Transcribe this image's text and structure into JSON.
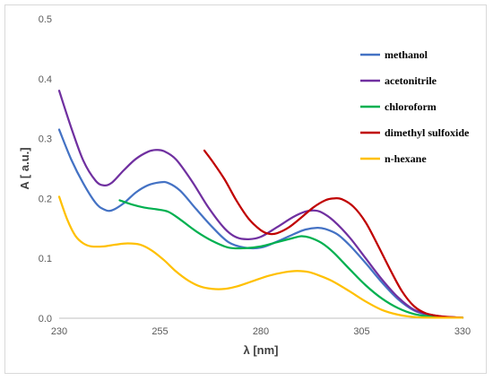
{
  "chart_data": {
    "type": "line",
    "xlabel": "λ [nm]",
    "ylabel": "A [ a.u.]",
    "xlim": [
      230,
      330
    ],
    "ylim": [
      0,
      0.5
    ],
    "x_ticks": [
      230,
      255,
      280,
      305,
      330
    ],
    "y_ticks": [
      0.0,
      0.1,
      0.2,
      0.3,
      0.4,
      0.5
    ],
    "y_tick_labels": [
      "0.0",
      "0.1",
      "0.2",
      "0.3",
      "0.4",
      "0.5"
    ],
    "grid": false,
    "legend_position": "right",
    "series": [
      {
        "name": "methanol",
        "color": "#4472C4",
        "points": [
          [
            230,
            0.315
          ],
          [
            233,
            0.265
          ],
          [
            236,
            0.225
          ],
          [
            239,
            0.193
          ],
          [
            241,
            0.182
          ],
          [
            243,
            0.18
          ],
          [
            246,
            0.192
          ],
          [
            249,
            0.21
          ],
          [
            252,
            0.222
          ],
          [
            255,
            0.227
          ],
          [
            257,
            0.226
          ],
          [
            260,
            0.213
          ],
          [
            264,
            0.182
          ],
          [
            268,
            0.152
          ],
          [
            272,
            0.127
          ],
          [
            276,
            0.118
          ],
          [
            280,
            0.118
          ],
          [
            284,
            0.128
          ],
          [
            288,
            0.14
          ],
          [
            291,
            0.148
          ],
          [
            294,
            0.151
          ],
          [
            296,
            0.149
          ],
          [
            299,
            0.14
          ],
          [
            302,
            0.122
          ],
          [
            306,
            0.092
          ],
          [
            310,
            0.06
          ],
          [
            314,
            0.032
          ],
          [
            318,
            0.013
          ],
          [
            322,
            0.005
          ],
          [
            326,
            0.002
          ],
          [
            330,
            0.001
          ]
        ]
      },
      {
        "name": "acetonitrile",
        "color": "#7030A0",
        "points": [
          [
            230,
            0.38
          ],
          [
            233,
            0.318
          ],
          [
            236,
            0.263
          ],
          [
            239,
            0.23
          ],
          [
            241,
            0.222
          ],
          [
            243,
            0.226
          ],
          [
            246,
            0.247
          ],
          [
            249,
            0.266
          ],
          [
            252,
            0.278
          ],
          [
            254,
            0.281
          ],
          [
            256,
            0.279
          ],
          [
            259,
            0.265
          ],
          [
            263,
            0.228
          ],
          [
            267,
            0.185
          ],
          [
            271,
            0.15
          ],
          [
            274,
            0.135
          ],
          [
            277,
            0.132
          ],
          [
            280,
            0.136
          ],
          [
            284,
            0.152
          ],
          [
            288,
            0.169
          ],
          [
            291,
            0.178
          ],
          [
            293,
            0.18
          ],
          [
            295,
            0.177
          ],
          [
            298,
            0.163
          ],
          [
            302,
            0.135
          ],
          [
            306,
            0.1
          ],
          [
            310,
            0.065
          ],
          [
            314,
            0.035
          ],
          [
            318,
            0.014
          ],
          [
            322,
            0.006
          ],
          [
            326,
            0.002
          ],
          [
            330,
            0.001
          ]
        ]
      },
      {
        "name": "chloroform",
        "color": "#00B050",
        "points": [
          [
            245,
            0.197
          ],
          [
            248,
            0.19
          ],
          [
            251,
            0.185
          ],
          [
            254,
            0.182
          ],
          [
            257,
            0.178
          ],
          [
            260,
            0.165
          ],
          [
            264,
            0.145
          ],
          [
            268,
            0.129
          ],
          [
            272,
            0.118
          ],
          [
            276,
            0.117
          ],
          [
            280,
            0.12
          ],
          [
            284,
            0.127
          ],
          [
            288,
            0.134
          ],
          [
            290,
            0.137
          ],
          [
            292,
            0.135
          ],
          [
            295,
            0.126
          ],
          [
            298,
            0.11
          ],
          [
            302,
            0.082
          ],
          [
            306,
            0.055
          ],
          [
            310,
            0.033
          ],
          [
            314,
            0.017
          ],
          [
            318,
            0.007
          ],
          [
            322,
            0.003
          ],
          [
            326,
            0.001
          ],
          [
            330,
            0.001
          ]
        ]
      },
      {
        "name": "dimethyl sulfoxide",
        "color": "#C00000",
        "points": [
          [
            266,
            0.28
          ],
          [
            268,
            0.262
          ],
          [
            271,
            0.232
          ],
          [
            274,
            0.196
          ],
          [
            277,
            0.166
          ],
          [
            280,
            0.147
          ],
          [
            282,
            0.141
          ],
          [
            284,
            0.142
          ],
          [
            287,
            0.152
          ],
          [
            290,
            0.168
          ],
          [
            293,
            0.185
          ],
          [
            296,
            0.197
          ],
          [
            298,
            0.2
          ],
          [
            300,
            0.199
          ],
          [
            303,
            0.186
          ],
          [
            306,
            0.16
          ],
          [
            309,
            0.122
          ],
          [
            312,
            0.082
          ],
          [
            315,
            0.045
          ],
          [
            318,
            0.02
          ],
          [
            321,
            0.008
          ],
          [
            325,
            0.003
          ],
          [
            330,
            0.001
          ]
        ]
      },
      {
        "name": "n-hexane",
        "color": "#FFC000",
        "points": [
          [
            230,
            0.203
          ],
          [
            232,
            0.165
          ],
          [
            234,
            0.138
          ],
          [
            236,
            0.125
          ],
          [
            238,
            0.12
          ],
          [
            241,
            0.12
          ],
          [
            244,
            0.123
          ],
          [
            247,
            0.125
          ],
          [
            250,
            0.123
          ],
          [
            253,
            0.113
          ],
          [
            256,
            0.097
          ],
          [
            259,
            0.078
          ],
          [
            262,
            0.063
          ],
          [
            265,
            0.053
          ],
          [
            268,
            0.049
          ],
          [
            271,
            0.049
          ],
          [
            274,
            0.053
          ],
          [
            278,
            0.062
          ],
          [
            282,
            0.071
          ],
          [
            286,
            0.077
          ],
          [
            289,
            0.079
          ],
          [
            292,
            0.077
          ],
          [
            295,
            0.07
          ],
          [
            298,
            0.061
          ],
          [
            302,
            0.045
          ],
          [
            306,
            0.028
          ],
          [
            310,
            0.014
          ],
          [
            314,
            0.006
          ],
          [
            318,
            0.002
          ],
          [
            322,
            0.001
          ],
          [
            330,
            0.001
          ]
        ]
      }
    ]
  }
}
